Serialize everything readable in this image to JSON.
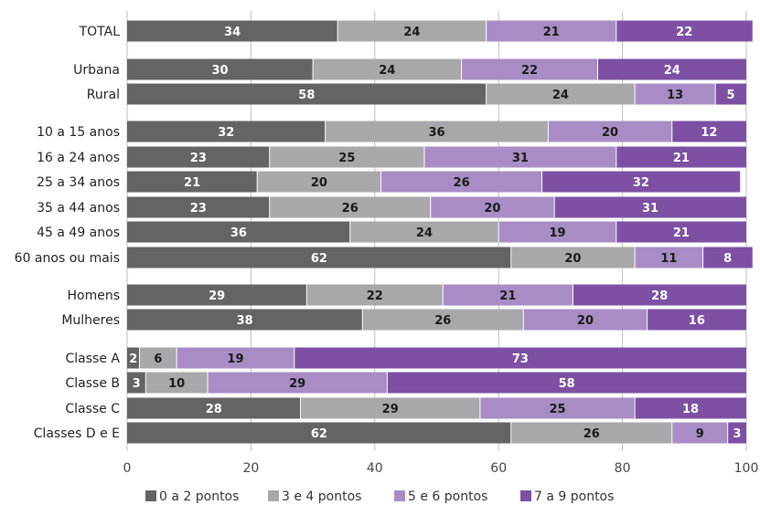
{
  "chart_data": {
    "type": "bar",
    "orientation": "horizontal",
    "stacked": true,
    "xlim": [
      0,
      100
    ],
    "x_ticks": [
      "0",
      "20",
      "40",
      "60",
      "80",
      "100"
    ],
    "grid": true,
    "legend_position": "bottom",
    "categories": [
      "TOTAL",
      "Urbana",
      "Rural",
      "10 a 15 anos",
      "16 a 24 anos",
      "25 a 34 anos",
      "35 a 44 anos",
      "45 a 49 anos",
      "60 anos ou mais",
      "Homens",
      "Mulheres",
      "Classe A",
      "Classe B",
      "Classe C",
      "Classes D e E"
    ],
    "series": [
      {
        "name": "0 a 2 pontos",
        "color": "#646466",
        "label_color": "#ffffff",
        "values": [
          34,
          30,
          58,
          32,
          23,
          21,
          23,
          36,
          62,
          29,
          38,
          2,
          3,
          28,
          62
        ]
      },
      {
        "name": "3 e 4 pontos",
        "color": "#a8a8aa",
        "label_color": "#1a1a1a",
        "values": [
          24,
          24,
          24,
          36,
          25,
          20,
          26,
          24,
          20,
          22,
          26,
          6,
          10,
          29,
          26
        ]
      },
      {
        "name": "5 e 6 pontos",
        "color": "#a98cc5",
        "label_color": "#1a1a1a",
        "values": [
          21,
          22,
          13,
          20,
          31,
          26,
          20,
          19,
          11,
          21,
          20,
          19,
          29,
          25,
          9
        ]
      },
      {
        "name": "7 a 9 pontos",
        "color": "#7d50a3",
        "label_color": "#ffffff",
        "values": [
          22,
          24,
          5,
          12,
          21,
          32,
          31,
          21,
          8,
          28,
          16,
          73,
          58,
          18,
          3
        ]
      }
    ]
  }
}
